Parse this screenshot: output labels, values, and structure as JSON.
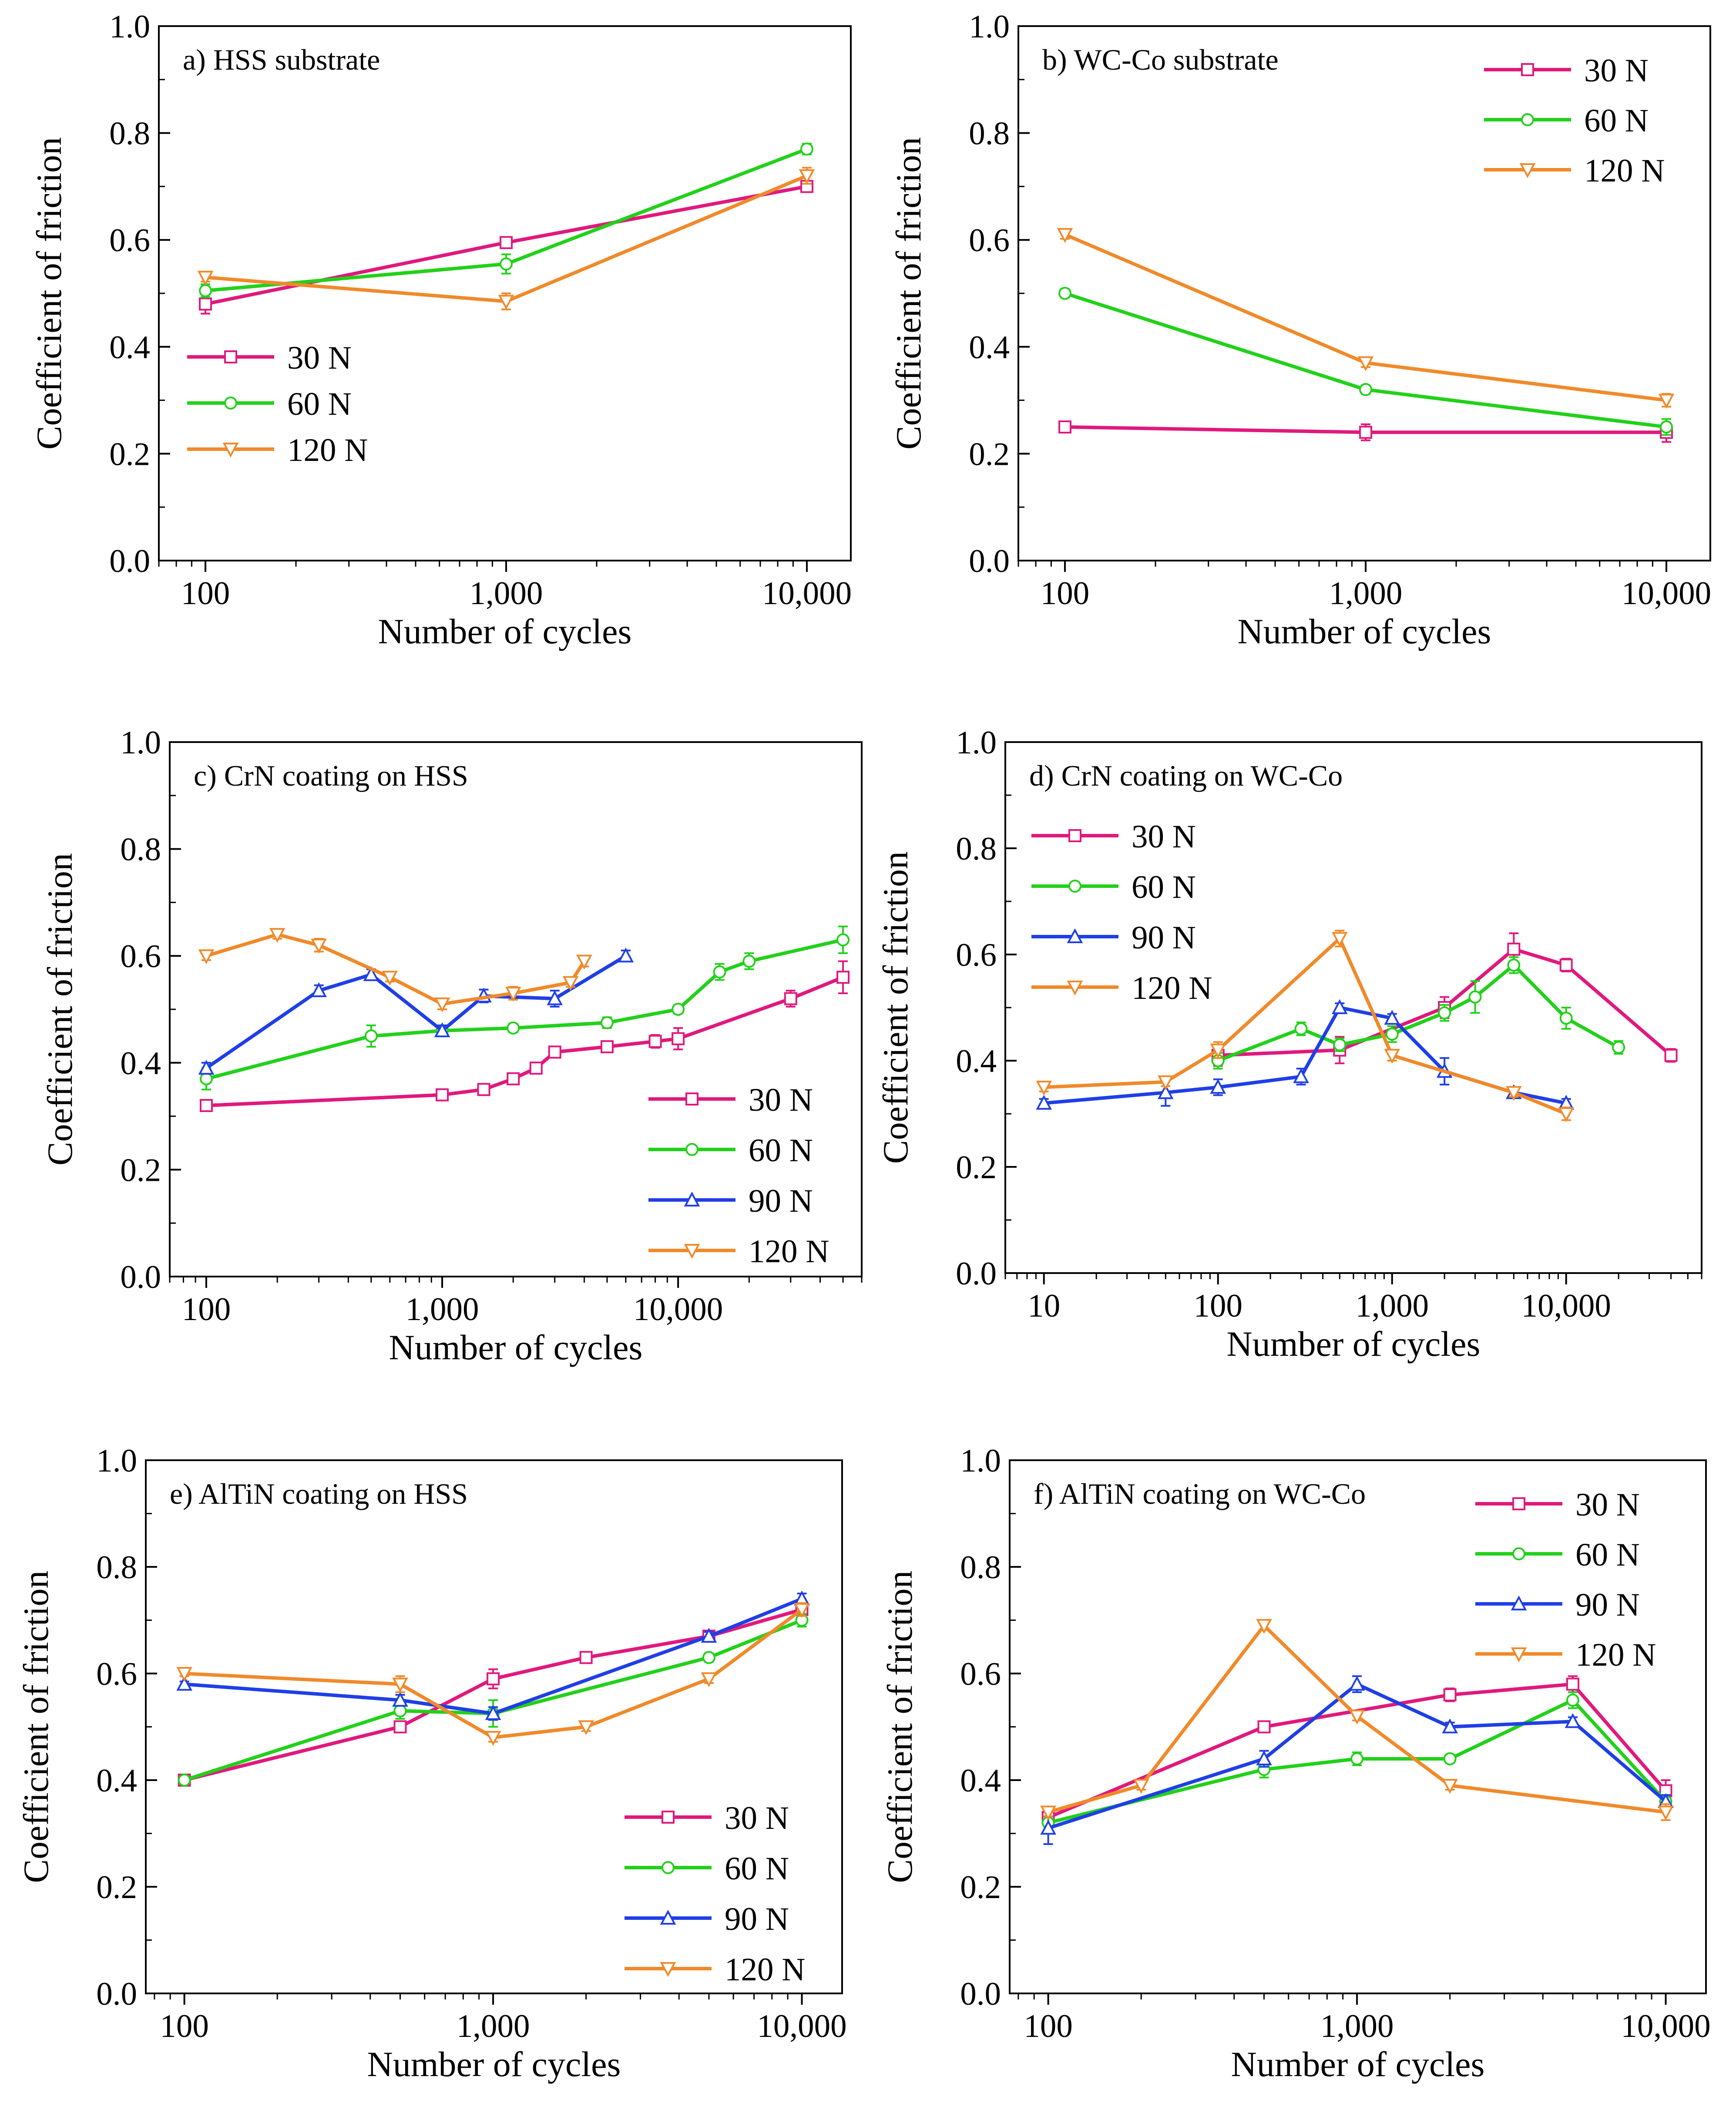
{
  "figure": {
    "colors": {
      "30 N": "#e0197d",
      "60 N": "#22d11a",
      "90 N": "#1f3fe6",
      "120 N": "#f08a2a"
    }
  },
  "chart_data": [
    {
      "id": "a",
      "type": "line",
      "title": "a) HSS substrate",
      "xlabel": "Number of cycles",
      "ylabel": "Coefficient of friction",
      "xscale": "log",
      "xlim": [
        70,
        14000
      ],
      "ylim": [
        0,
        1
      ],
      "xticks": [
        100,
        1000,
        10000
      ],
      "xtick_labels": [
        "100",
        "1,000",
        "10,000"
      ],
      "yticks": [
        0,
        0.2,
        0.4,
        0.6,
        0.8,
        1.0
      ],
      "ytick_labels": [
        "0.0",
        "0.2",
        "0.4",
        "0.6",
        "0.8",
        "1.0"
      ],
      "legend_position": "lower-left",
      "series": [
        {
          "name": "30 N",
          "marker": "square",
          "x": [
            100,
            1000,
            10000
          ],
          "y": [
            0.48,
            0.595,
            0.7
          ],
          "err": [
            0.018,
            0.008,
            0.008
          ]
        },
        {
          "name": "60 N",
          "marker": "circle",
          "x": [
            100,
            1000,
            10000
          ],
          "y": [
            0.505,
            0.555,
            0.77
          ],
          "err": [
            0.012,
            0.018,
            0.01
          ]
        },
        {
          "name": "120 N",
          "marker": "triangle-down",
          "x": [
            100,
            1000,
            10000
          ],
          "y": [
            0.53,
            0.485,
            0.72
          ],
          "err": [
            0.008,
            0.015,
            0.015
          ]
        }
      ]
    },
    {
      "id": "b",
      "type": "line",
      "title": "b) WC-Co substrate",
      "xlabel": "Number of cycles",
      "ylabel": "Coefficient of friction",
      "xscale": "log",
      "xlim": [
        70,
        14000
      ],
      "ylim": [
        0,
        1
      ],
      "xticks": [
        100,
        1000,
        10000
      ],
      "xtick_labels": [
        "100",
        "1,000",
        "10,000"
      ],
      "yticks": [
        0,
        0.2,
        0.4,
        0.6,
        0.8,
        1.0
      ],
      "ytick_labels": [
        "0.0",
        "0.2",
        "0.4",
        "0.6",
        "0.8",
        "1.0"
      ],
      "legend_position": "top-right",
      "series": [
        {
          "name": "30 N",
          "marker": "square",
          "x": [
            100,
            1000,
            10000
          ],
          "y": [
            0.25,
            0.24,
            0.24
          ],
          "err": [
            0.008,
            0.015,
            0.018
          ]
        },
        {
          "name": "60 N",
          "marker": "circle",
          "x": [
            100,
            1000,
            10000
          ],
          "y": [
            0.5,
            0.32,
            0.25
          ],
          "err": [
            0.008,
            0.008,
            0.015
          ]
        },
        {
          "name": "120 N",
          "marker": "triangle-down",
          "x": [
            100,
            1000,
            10000
          ],
          "y": [
            0.61,
            0.37,
            0.3
          ],
          "err": [
            0.008,
            0.008,
            0.012
          ]
        }
      ]
    },
    {
      "id": "c",
      "type": "line",
      "title": "c) CrN coating on HSS",
      "xlabel": "Number of cycles",
      "ylabel": "Coefficient of friction",
      "xscale": "log",
      "xlim": [
        70,
        60000
      ],
      "ylim": [
        0,
        1
      ],
      "xticks": [
        100,
        1000,
        10000
      ],
      "xtick_labels": [
        "100",
        "1,000",
        "10,000"
      ],
      "yticks": [
        0,
        0.2,
        0.4,
        0.6,
        0.8,
        1.0
      ],
      "ytick_labels": [
        "0.0",
        "0.2",
        "0.4",
        "0.6",
        "0.8",
        "1.0"
      ],
      "legend_position": "lower-right",
      "series": [
        {
          "name": "30 N",
          "marker": "square",
          "x": [
            100,
            1000,
            1500,
            2000,
            2500,
            3000,
            5000,
            8000,
            10000,
            30000,
            50000
          ],
          "y": [
            0.32,
            0.34,
            0.35,
            0.37,
            0.39,
            0.42,
            0.43,
            0.44,
            0.445,
            0.52,
            0.56
          ],
          "err": [
            0.005,
            0.005,
            0.005,
            0.008,
            0.008,
            0.008,
            0.008,
            0.012,
            0.02,
            0.015,
            0.03
          ]
        },
        {
          "name": "60 N",
          "marker": "circle",
          "x": [
            100,
            500,
            1000,
            2000,
            5000,
            10000,
            15000,
            20000,
            50000
          ],
          "y": [
            0.37,
            0.45,
            0.46,
            0.465,
            0.475,
            0.5,
            0.57,
            0.59,
            0.63
          ],
          "err": [
            0.02,
            0.02,
            0.008,
            0.008,
            0.01,
            0.008,
            0.015,
            0.015,
            0.025
          ]
        },
        {
          "name": "90 N",
          "marker": "triangle-up",
          "x": [
            100,
            300,
            500,
            1000,
            1500,
            3000,
            6000
          ],
          "y": [
            0.39,
            0.535,
            0.565,
            0.46,
            0.525,
            0.52,
            0.6
          ],
          "err": [
            0.01,
            0.01,
            0.01,
            0.01,
            0.012,
            0.015,
            0.01
          ]
        },
        {
          "name": "120 N",
          "marker": "triangle-down",
          "x": [
            100,
            200,
            300,
            600,
            1000,
            2000,
            3500,
            4000
          ],
          "y": [
            0.6,
            0.64,
            0.62,
            0.56,
            0.51,
            0.53,
            0.55,
            0.59
          ],
          "err": [
            0.008,
            0.008,
            0.012,
            0.008,
            0.01,
            0.012,
            0.008,
            0.01
          ]
        }
      ]
    },
    {
      "id": "d",
      "type": "line",
      "title": "d) CrN coating on WC-Co",
      "xlabel": "Number of cycles",
      "ylabel": "Coefficient of friction",
      "xscale": "log",
      "xlim": [
        6,
        60000
      ],
      "ylim": [
        0,
        1
      ],
      "xticks": [
        10,
        100,
        1000,
        10000
      ],
      "xtick_labels": [
        "10",
        "100",
        "1,000",
        "10,000"
      ],
      "yticks": [
        0,
        0.2,
        0.4,
        0.6,
        0.8,
        1.0
      ],
      "ytick_labels": [
        "0.0",
        "0.2",
        "0.4",
        "0.6",
        "0.8",
        "1.0"
      ],
      "legend_position": "upper-left",
      "series": [
        {
          "name": "30 N",
          "marker": "square",
          "x": [
            100,
            500,
            2000,
            5000,
            10000,
            40000
          ],
          "y": [
            0.41,
            0.42,
            0.5,
            0.61,
            0.58,
            0.41
          ],
          "err": [
            0.02,
            0.025,
            0.02,
            0.03,
            0.012,
            0.012
          ]
        },
        {
          "name": "60 N",
          "marker": "circle",
          "x": [
            100,
            300,
            500,
            1000,
            2000,
            3000,
            5000,
            10000,
            20000
          ],
          "y": [
            0.4,
            0.46,
            0.43,
            0.45,
            0.49,
            0.52,
            0.58,
            0.48,
            0.425
          ],
          "err": [
            0.015,
            0.012,
            0.012,
            0.015,
            0.015,
            0.03,
            0.015,
            0.02,
            0.012
          ]
        },
        {
          "name": "90 N",
          "marker": "triangle-up",
          "x": [
            10,
            50,
            100,
            300,
            500,
            1000,
            2000,
            5000,
            10000
          ],
          "y": [
            0.32,
            0.34,
            0.35,
            0.37,
            0.5,
            0.48,
            0.38,
            0.34,
            0.32
          ],
          "err": [
            0.008,
            0.025,
            0.015,
            0.015,
            0.008,
            0.008,
            0.025,
            0.01,
            0.008
          ]
        },
        {
          "name": "120 N",
          "marker": "triangle-down",
          "x": [
            10,
            50,
            100,
            500,
            1000,
            5000,
            10000
          ],
          "y": [
            0.35,
            0.36,
            0.42,
            0.63,
            0.41,
            0.34,
            0.3
          ],
          "err": [
            0.008,
            0.008,
            0.015,
            0.015,
            0.01,
            0.008,
            0.012
          ]
        }
      ]
    },
    {
      "id": "e",
      "type": "line",
      "title": "e) AlTiN coating on HSS",
      "xlabel": "Number of cycles",
      "ylabel": "Coefficient of friction",
      "xscale": "log",
      "xlim": [
        75,
        13500
      ],
      "ylim": [
        0,
        1
      ],
      "xticks": [
        100,
        1000,
        10000
      ],
      "xtick_labels": [
        "100",
        "1,000",
        "10,000"
      ],
      "yticks": [
        0,
        0.2,
        0.4,
        0.6,
        0.8,
        1.0
      ],
      "ytick_labels": [
        "0.0",
        "0.2",
        "0.4",
        "0.6",
        "0.8",
        "1.0"
      ],
      "legend_position": "lower-right",
      "series": [
        {
          "name": "30 N",
          "marker": "square",
          "x": [
            100,
            500,
            1000,
            2000,
            5000,
            10000
          ],
          "y": [
            0.4,
            0.5,
            0.59,
            0.63,
            0.67,
            0.72
          ],
          "err": [
            0.005,
            0.008,
            0.018,
            0.008,
            0.008,
            0.012
          ]
        },
        {
          "name": "60 N",
          "marker": "circle",
          "x": [
            100,
            500,
            1000,
            5000,
            10000
          ],
          "y": [
            0.4,
            0.53,
            0.525,
            0.63,
            0.7
          ],
          "err": [
            0.005,
            0.015,
            0.025,
            0.008,
            0.012
          ]
        },
        {
          "name": "90 N",
          "marker": "triangle-up",
          "x": [
            100,
            500,
            1000,
            5000,
            10000
          ],
          "y": [
            0.58,
            0.55,
            0.525,
            0.67,
            0.74
          ],
          "err": [
            0.005,
            0.01,
            0.012,
            0.008,
            0.01
          ]
        },
        {
          "name": "120 N",
          "marker": "triangle-down",
          "x": [
            100,
            500,
            1000,
            2000,
            5000,
            10000
          ],
          "y": [
            0.6,
            0.58,
            0.48,
            0.5,
            0.59,
            0.72
          ],
          "err": [
            0.005,
            0.015,
            0.008,
            0.008,
            0.008,
            0.012
          ]
        }
      ]
    },
    {
      "id": "f",
      "type": "line",
      "title": "f) AlTiN coating on WC-Co",
      "xlabel": "Number of cycles",
      "ylabel": "Coefficient of friction",
      "xscale": "log",
      "xlim": [
        75,
        13500
      ],
      "ylim": [
        0,
        1
      ],
      "xticks": [
        100,
        1000,
        10000
      ],
      "xtick_labels": [
        "100",
        "1,000",
        "10,000"
      ],
      "yticks": [
        0,
        0.2,
        0.4,
        0.6,
        0.8,
        1.0
      ],
      "ytick_labels": [
        "0.0",
        "0.2",
        "0.4",
        "0.6",
        "0.8",
        "1.0"
      ],
      "legend_position": "top-right",
      "series": [
        {
          "name": "30 N",
          "marker": "square",
          "x": [
            100,
            500,
            2000,
            5000,
            10000
          ],
          "y": [
            0.33,
            0.5,
            0.56,
            0.58,
            0.38
          ],
          "err": [
            0.01,
            0.008,
            0.012,
            0.015,
            0.02
          ]
        },
        {
          "name": "60 N",
          "marker": "circle",
          "x": [
            100,
            500,
            1000,
            2000,
            5000,
            10000
          ],
          "y": [
            0.32,
            0.42,
            0.44,
            0.44,
            0.55,
            0.36
          ],
          "err": [
            0.012,
            0.015,
            0.012,
            0.008,
            0.015,
            0.012
          ]
        },
        {
          "name": "90 N",
          "marker": "triangle-up",
          "x": [
            100,
            500,
            1000,
            2000,
            5000,
            10000
          ],
          "y": [
            0.31,
            0.44,
            0.58,
            0.5,
            0.51,
            0.36
          ],
          "err": [
            0.03,
            0.015,
            0.015,
            0.008,
            0.008,
            0.012
          ]
        },
        {
          "name": "120 N",
          "marker": "triangle-down",
          "x": [
            100,
            200,
            500,
            1000,
            2000,
            10000
          ],
          "y": [
            0.34,
            0.39,
            0.69,
            0.52,
            0.39,
            0.34
          ],
          "err": [
            0.008,
            0.008,
            0.008,
            0.008,
            0.008,
            0.015
          ]
        }
      ]
    }
  ]
}
